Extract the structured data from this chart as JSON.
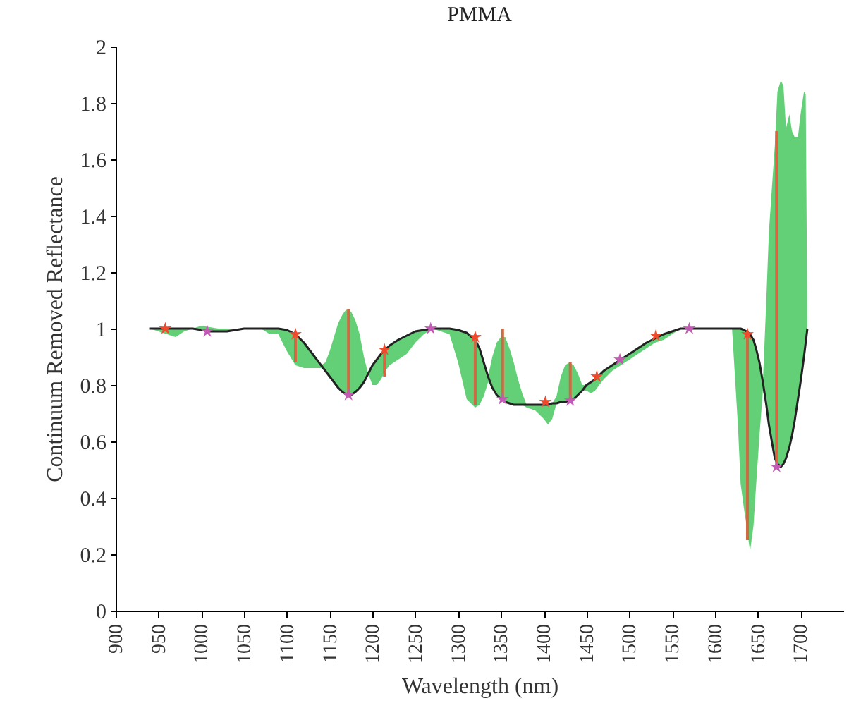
{
  "chart_data": {
    "type": "line",
    "title": "PMMA",
    "xlabel": "Wavelength (nm)",
    "ylabel": "Continuum Removed Reflectance",
    "xlim": [
      900,
      1750
    ],
    "xticks": [
      900,
      950,
      1000,
      1050,
      1100,
      1150,
      1200,
      1250,
      1300,
      1350,
      1400,
      1450,
      1500,
      1550,
      1600,
      1650,
      1700
    ],
    "ylim": [
      0,
      2
    ],
    "yticks": [
      0,
      0.2,
      0.4,
      0.6,
      0.8,
      1,
      1.2,
      1.4,
      1.6,
      1.8,
      2
    ],
    "grid": false,
    "series": [
      {
        "color": "#222222",
        "x": [
          940,
          950,
          960,
          970,
          980,
          990,
          1000,
          1010,
          1020,
          1030,
          1040,
          1050,
          1060,
          1070,
          1080,
          1090,
          1100,
          1110,
          1120,
          1130,
          1140,
          1145,
          1150,
          1155,
          1160,
          1165,
          1170,
          1175,
          1180,
          1185,
          1190,
          1195,
          1200,
          1205,
          1210,
          1215,
          1220,
          1230,
          1240,
          1250,
          1260,
          1270,
          1280,
          1290,
          1300,
          1310,
          1320,
          1325,
          1330,
          1335,
          1340,
          1345,
          1350,
          1355,
          1360,
          1365,
          1370,
          1375,
          1380,
          1390,
          1400,
          1405,
          1410,
          1415,
          1420,
          1425,
          1430,
          1435,
          1440,
          1445,
          1450,
          1455,
          1460,
          1470,
          1480,
          1490,
          1500,
          1510,
          1520,
          1530,
          1540,
          1550,
          1560,
          1570,
          1580,
          1590,
          1600,
          1610,
          1620,
          1627,
          1630,
          1634,
          1637,
          1641,
          1645,
          1648,
          1652,
          1656,
          1660,
          1663,
          1667,
          1670,
          1673,
          1677,
          1680,
          1683,
          1687,
          1690,
          1693,
          1697,
          1700,
          1704,
          1706,
          1708
        ],
        "values": [
          1,
          1,
          1,
          1,
          1,
          1,
          0.995,
          0.99,
          0.99,
          0.99,
          0.995,
          1,
          1,
          1,
          1,
          1,
          0.995,
          0.98,
          0.95,
          0.91,
          0.87,
          0.85,
          0.83,
          0.81,
          0.79,
          0.775,
          0.765,
          0.765,
          0.775,
          0.79,
          0.81,
          0.84,
          0.87,
          0.89,
          0.91,
          0.925,
          0.94,
          0.96,
          0.975,
          0.99,
          0.995,
          1,
          1,
          1,
          0.995,
          0.985,
          0.96,
          0.93,
          0.88,
          0.83,
          0.79,
          0.765,
          0.75,
          0.74,
          0.735,
          0.73,
          0.73,
          0.73,
          0.73,
          0.73,
          0.73,
          0.73,
          0.735,
          0.735,
          0.74,
          0.74,
          0.745,
          0.75,
          0.765,
          0.78,
          0.8,
          0.81,
          0.82,
          0.85,
          0.87,
          0.89,
          0.91,
          0.93,
          0.95,
          0.965,
          0.98,
          0.99,
          1,
          1,
          1,
          1,
          1,
          1,
          1,
          1,
          1,
          0.995,
          0.99,
          0.98,
          0.96,
          0.93,
          0.88,
          0.81,
          0.73,
          0.66,
          0.59,
          0.54,
          0.52,
          0.51,
          0.52,
          0.54,
          0.58,
          0.62,
          0.67,
          0.75,
          0.81,
          0.9,
          0.95,
          1
        ],
        "lower": [
          1,
          0.99,
          0.98,
          0.97,
          0.99,
          1,
          0.995,
          null,
          0.99,
          0.99,
          0.99,
          1,
          1,
          1,
          0.98,
          0.98,
          0.92,
          0.87,
          0.86,
          0.86,
          0.86,
          0.85,
          0.83,
          0.81,
          0.79,
          0.775,
          0.765,
          0.765,
          0.775,
          0.79,
          0.81,
          0.84,
          0.8,
          0.8,
          0.82,
          0.85,
          0.87,
          0.89,
          0.91,
          0.95,
          0.98,
          1,
          0.99,
          0.98,
          0.88,
          0.75,
          0.72,
          0.73,
          0.76,
          0.81,
          0.79,
          0.765,
          0.75,
          0.74,
          0.735,
          0.73,
          0.73,
          0.73,
          0.72,
          0.71,
          0.68,
          0.66,
          0.68,
          0.735,
          0.74,
          0.74,
          0.745,
          0.75,
          0.765,
          0.78,
          0.78,
          0.77,
          0.78,
          0.82,
          0.85,
          0.87,
          0.89,
          0.91,
          0.93,
          0.95,
          0.96,
          0.98,
          1,
          1,
          1,
          1,
          1,
          1,
          1,
          0.65,
          0.45,
          0.36,
          0.3,
          0.21,
          0.3,
          0.44,
          0.62,
          0.78,
          0.73,
          0.66,
          0.59,
          0.54,
          0.52,
          0.51,
          0.52,
          0.54,
          0.58,
          0.62,
          0.67,
          0.75,
          0.81,
          0.9,
          0.95,
          1
        ],
        "upper": [
          1,
          1,
          1,
          1,
          1,
          1,
          1.01,
          null,
          1,
          1,
          0.995,
          1,
          1,
          1,
          1,
          1,
          0.995,
          0.98,
          0.95,
          0.91,
          0.87,
          0.88,
          0.92,
          0.97,
          1.02,
          1.05,
          1.07,
          1.06,
          1.03,
          0.98,
          0.9,
          0.84,
          0.87,
          0.89,
          0.91,
          0.925,
          0.94,
          0.96,
          0.975,
          0.99,
          0.995,
          1,
          1,
          1,
          0.995,
          0.985,
          0.96,
          0.93,
          0.88,
          0.83,
          0.9,
          0.95,
          0.97,
          0.97,
          0.93,
          0.88,
          0.82,
          0.77,
          0.73,
          0.73,
          0.73,
          0.73,
          0.735,
          0.76,
          0.83,
          0.87,
          0.88,
          0.87,
          0.84,
          0.8,
          0.8,
          0.81,
          0.82,
          0.85,
          0.87,
          0.89,
          0.91,
          0.93,
          0.95,
          0.965,
          0.98,
          0.99,
          1,
          1,
          1,
          1,
          1,
          1,
          1,
          1,
          1,
          0.995,
          0.99,
          0.98,
          0.96,
          0.93,
          0.88,
          0.81,
          1.1,
          1.34,
          1.52,
          1.65,
          1.84,
          1.88,
          1.86,
          1.71,
          1.76,
          1.7,
          1.68,
          1.68,
          1.76,
          1.84,
          1.83,
          1
        ]
      },
      {
        "type": "scatter",
        "color": "#f04a2c",
        "marker": "star",
        "x": [
          958,
          1110,
          1214,
          1320,
          1402,
          1462,
          1531,
          1638
        ],
        "values": [
          1,
          0.98,
          0.925,
          0.97,
          0.74,
          0.83,
          0.975,
          0.98
        ],
        "errors": [
          null,
          [
            0.88,
            0.98
          ],
          [
            0.83,
            0.925
          ],
          [
            0.73,
            0.97
          ],
          null,
          null,
          null,
          [
            0.25,
            0.98
          ]
        ]
      },
      {
        "type": "scatter",
        "color": "#c35bb4",
        "marker": "star",
        "x": [
          1007,
          1172,
          1268,
          1352,
          1431,
          1489,
          1570,
          1672
        ],
        "values": [
          0.99,
          0.765,
          1,
          0.75,
          0.745,
          0.89,
          1,
          0.51
        ],
        "errors": [
          null,
          [
            0.765,
            1.07
          ],
          null,
          [
            0.75,
            1
          ],
          [
            0.745,
            0.88
          ],
          null,
          null,
          [
            0.51,
            1.7
          ]
        ]
      }
    ]
  }
}
